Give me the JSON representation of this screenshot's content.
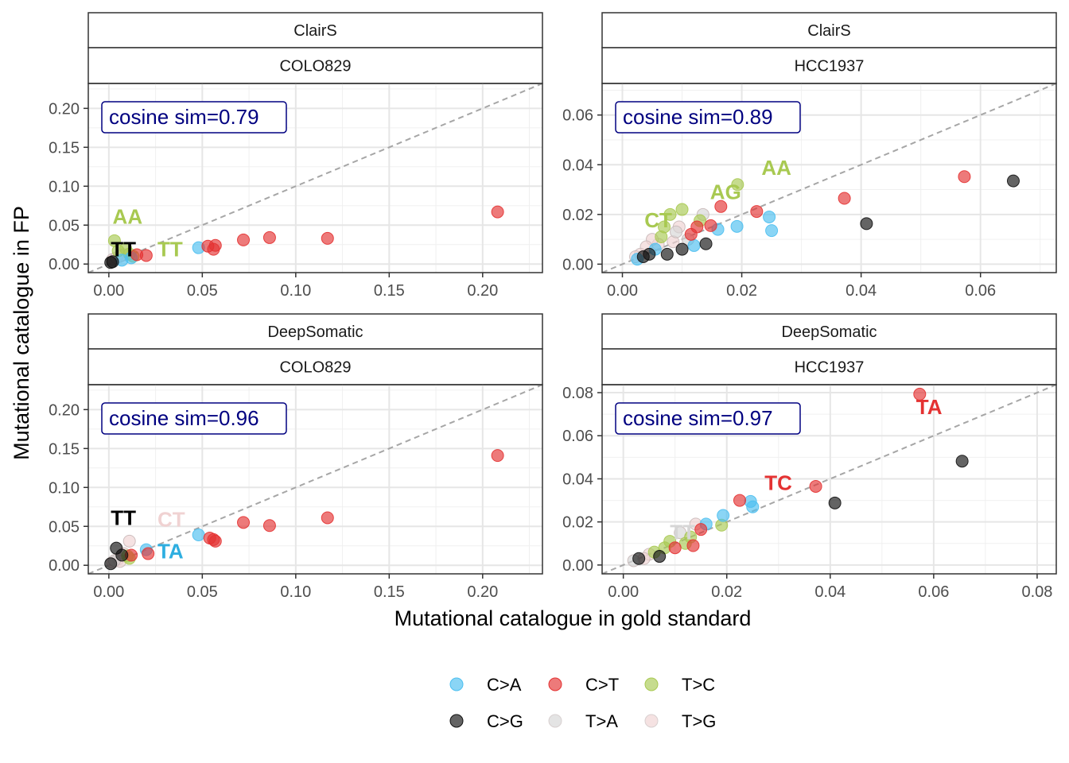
{
  "figure": {
    "xlabel": "Mutational catalogue in gold standard",
    "ylabel": "Mutational catalogue in FP"
  },
  "legend": {
    "placement": "bottom",
    "items": [
      {
        "label": "C>A",
        "color": "#4cbff0"
      },
      {
        "label": "C>T",
        "color": "#e43232"
      },
      {
        "label": "T>C",
        "color": "#a8c951"
      },
      {
        "label": "C>G",
        "color": "#111111"
      },
      {
        "label": "T>A",
        "color": "#d6d6d6"
      },
      {
        "label": "T>G",
        "color": "#f0d2d2"
      }
    ]
  },
  "chart_data": [
    {
      "type": "scatter",
      "strip_top": "ClairS",
      "strip_bottom": "COLO829",
      "annotation": "cosine sim=0.79",
      "xlim": [
        -0.011,
        0.232
      ],
      "ylim": [
        -0.011,
        0.232
      ],
      "xticks": [
        0,
        0.05,
        0.1,
        0.15,
        0.2
      ],
      "yticks": [
        0,
        0.05,
        0.1,
        0.15,
        0.2
      ],
      "tick_labels": [
        "0.00",
        "0.05",
        "0.10",
        "0.15",
        "0.20"
      ],
      "diagonal": true,
      "points": [
        {
          "x": 0.208,
          "y": 0.067,
          "cls": "C>T"
        },
        {
          "x": 0.117,
          "y": 0.033,
          "cls": "C>T"
        },
        {
          "x": 0.086,
          "y": 0.034,
          "cls": "C>T"
        },
        {
          "x": 0.072,
          "y": 0.031,
          "cls": "C>T"
        },
        {
          "x": 0.057,
          "y": 0.024,
          "cls": "C>T"
        },
        {
          "x": 0.053,
          "y": 0.023,
          "cls": "C>T"
        },
        {
          "x": 0.056,
          "y": 0.019,
          "cls": "C>T"
        },
        {
          "x": 0.048,
          "y": 0.021,
          "cls": "C>A"
        },
        {
          "x": 0.02,
          "y": 0.011,
          "cls": "C>T"
        },
        {
          "x": 0.015,
          "y": 0.012,
          "cls": "C>T"
        },
        {
          "x": 0.007,
          "y": 0.005,
          "cls": "C>A"
        },
        {
          "x": 0.012,
          "y": 0.008,
          "cls": "C>A"
        },
        {
          "x": 0.003,
          "y": 0.03,
          "cls": "T>C"
        },
        {
          "x": 0.009,
          "y": 0.02,
          "cls": "T>C"
        },
        {
          "x": 0.011,
          "y": 0.013,
          "cls": "T>C"
        },
        {
          "x": 0.013,
          "y": 0.01,
          "cls": "T>C"
        },
        {
          "x": 0.005,
          "y": 0.017,
          "cls": "T>C"
        },
        {
          "x": 0.006,
          "y": 0.01,
          "cls": "T>A"
        },
        {
          "x": 0.002,
          "y": 0.006,
          "cls": "T>G"
        },
        {
          "x": 0.008,
          "y": 0.012,
          "cls": "T>G"
        },
        {
          "x": 0.004,
          "y": 0.008,
          "cls": "T>G"
        },
        {
          "x": 0.001,
          "y": 0.002,
          "cls": "C>G"
        },
        {
          "x": 0.002,
          "y": 0.003,
          "cls": "C>G"
        }
      ],
      "labels": [
        {
          "text": "AA",
          "x": 0.002,
          "y": 0.052,
          "color": "#a8c951"
        },
        {
          "text": "TT",
          "x": 0.001,
          "y": 0.01,
          "color": "#000000"
        },
        {
          "text": "TT",
          "x": 0.026,
          "y": 0.01,
          "color": "#a8c951"
        }
      ]
    },
    {
      "type": "scatter",
      "strip_top": "ClairS",
      "strip_bottom": "HCC1937",
      "annotation": "cosine sim=0.89",
      "xlim": [
        -0.0034,
        0.0727
      ],
      "ylim": [
        -0.0034,
        0.0727
      ],
      "xticks": [
        0,
        0.02,
        0.04,
        0.06
      ],
      "yticks": [
        0,
        0.02,
        0.04,
        0.06
      ],
      "tick_labels": [
        "0.00",
        "0.02",
        "0.04",
        "0.06"
      ],
      "diagonal": true,
      "points": [
        {
          "x": 0.0655,
          "y": 0.0335,
          "cls": "C>G"
        },
        {
          "x": 0.0573,
          "y": 0.0352,
          "cls": "C>T"
        },
        {
          "x": 0.0409,
          "y": 0.0163,
          "cls": "C>G"
        },
        {
          "x": 0.0372,
          "y": 0.0265,
          "cls": "C>T"
        },
        {
          "x": 0.0246,
          "y": 0.019,
          "cls": "C>A"
        },
        {
          "x": 0.025,
          "y": 0.0135,
          "cls": "C>A"
        },
        {
          "x": 0.0225,
          "y": 0.0212,
          "cls": "C>T"
        },
        {
          "x": 0.0193,
          "y": 0.032,
          "cls": "T>C"
        },
        {
          "x": 0.0192,
          "y": 0.0152,
          "cls": "C>A"
        },
        {
          "x": 0.0165,
          "y": 0.0232,
          "cls": "C>T"
        },
        {
          "x": 0.016,
          "y": 0.014,
          "cls": "C>A"
        },
        {
          "x": 0.0148,
          "y": 0.0155,
          "cls": "C>T"
        },
        {
          "x": 0.014,
          "y": 0.0082,
          "cls": "C>G"
        },
        {
          "x": 0.0135,
          "y": 0.02,
          "cls": "T>A"
        },
        {
          "x": 0.013,
          "y": 0.0175,
          "cls": "T>C"
        },
        {
          "x": 0.0125,
          "y": 0.015,
          "cls": "C>T"
        },
        {
          "x": 0.012,
          "y": 0.0075,
          "cls": "C>A"
        },
        {
          "x": 0.0115,
          "y": 0.012,
          "cls": "C>T"
        },
        {
          "x": 0.011,
          "y": 0.01,
          "cls": "T>A"
        },
        {
          "x": 0.01,
          "y": 0.022,
          "cls": "T>C"
        },
        {
          "x": 0.01,
          "y": 0.006,
          "cls": "C>G"
        },
        {
          "x": 0.0095,
          "y": 0.015,
          "cls": "T>G"
        },
        {
          "x": 0.009,
          "y": 0.013,
          "cls": "T>A"
        },
        {
          "x": 0.0085,
          "y": 0.009,
          "cls": "T>G"
        },
        {
          "x": 0.008,
          "y": 0.02,
          "cls": "T>C"
        },
        {
          "x": 0.0075,
          "y": 0.004,
          "cls": "C>G"
        },
        {
          "x": 0.007,
          "y": 0.015,
          "cls": "T>C"
        },
        {
          "x": 0.0065,
          "y": 0.011,
          "cls": "T>C"
        },
        {
          "x": 0.006,
          "y": 0.008,
          "cls": "T>G"
        },
        {
          "x": 0.0055,
          "y": 0.006,
          "cls": "C>A"
        },
        {
          "x": 0.005,
          "y": 0.01,
          "cls": "T>G"
        },
        {
          "x": 0.0045,
          "y": 0.004,
          "cls": "C>G"
        },
        {
          "x": 0.004,
          "y": 0.007,
          "cls": "T>G"
        },
        {
          "x": 0.0035,
          "y": 0.003,
          "cls": "C>G"
        },
        {
          "x": 0.003,
          "y": 0.004,
          "cls": "T>G"
        },
        {
          "x": 0.0025,
          "y": 0.002,
          "cls": "C>A"
        },
        {
          "x": 0.0022,
          "y": 0.003,
          "cls": "T>G"
        }
      ],
      "labels": [
        {
          "text": "AA",
          "x": 0.0233,
          "y": 0.036,
          "color": "#a8c951"
        },
        {
          "text": "AG",
          "x": 0.0147,
          "y": 0.0262,
          "color": "#a8c951"
        },
        {
          "text": "CT",
          "x": 0.0037,
          "y": 0.0148,
          "color": "#a8c951"
        }
      ]
    },
    {
      "type": "scatter",
      "strip_top": "DeepSomatic",
      "strip_bottom": "COLO829",
      "annotation": "cosine sim=0.96",
      "xlim": [
        -0.011,
        0.232
      ],
      "ylim": [
        -0.011,
        0.232
      ],
      "xticks": [
        0,
        0.05,
        0.1,
        0.15,
        0.2
      ],
      "yticks": [
        0,
        0.05,
        0.1,
        0.15,
        0.2
      ],
      "tick_labels": [
        "0.00",
        "0.05",
        "0.10",
        "0.15",
        "0.20"
      ],
      "diagonal": true,
      "points": [
        {
          "x": 0.208,
          "y": 0.141,
          "cls": "C>T"
        },
        {
          "x": 0.117,
          "y": 0.061,
          "cls": "C>T"
        },
        {
          "x": 0.086,
          "y": 0.051,
          "cls": "C>T"
        },
        {
          "x": 0.072,
          "y": 0.055,
          "cls": "C>T"
        },
        {
          "x": 0.054,
          "y": 0.035,
          "cls": "C>T"
        },
        {
          "x": 0.057,
          "y": 0.031,
          "cls": "C>T"
        },
        {
          "x": 0.056,
          "y": 0.033,
          "cls": "C>T"
        },
        {
          "x": 0.048,
          "y": 0.039,
          "cls": "C>A"
        },
        {
          "x": 0.02,
          "y": 0.02,
          "cls": "C>A"
        },
        {
          "x": 0.021,
          "y": 0.015,
          "cls": "C>T"
        },
        {
          "x": 0.012,
          "y": 0.013,
          "cls": "C>T"
        },
        {
          "x": 0.011,
          "y": 0.031,
          "cls": "T>G"
        },
        {
          "x": 0.008,
          "y": 0.015,
          "cls": "T>G"
        },
        {
          "x": 0.004,
          "y": 0.022,
          "cls": "C>G"
        },
        {
          "x": 0.007,
          "y": 0.013,
          "cls": "C>G"
        },
        {
          "x": 0.01,
          "y": 0.012,
          "cls": "T>C"
        },
        {
          "x": 0.011,
          "y": 0.009,
          "cls": "T>C"
        },
        {
          "x": 0.005,
          "y": 0.008,
          "cls": "T>G"
        },
        {
          "x": 0.003,
          "y": 0.006,
          "cls": "T>A"
        },
        {
          "x": 0.002,
          "y": 0.004,
          "cls": "T>G"
        },
        {
          "x": 0.001,
          "y": 0.002,
          "cls": "C>G"
        },
        {
          "x": 0.006,
          "y": 0.005,
          "cls": "T>G"
        }
      ],
      "labels": [
        {
          "text": "TT",
          "x": 0.001,
          "y": 0.052,
          "color": "#000000"
        },
        {
          "text": "CT",
          "x": 0.026,
          "y": 0.05,
          "color": "#f0d2d2"
        },
        {
          "text": "TA",
          "x": 0.026,
          "y": 0.009,
          "color": "#2eaee0"
        }
      ]
    },
    {
      "type": "scatter",
      "strip_top": "DeepSomatic",
      "strip_bottom": "HCC1937",
      "annotation": "cosine sim=0.97",
      "xlim": [
        -0.0041,
        0.0837
      ],
      "ylim": [
        -0.0041,
        0.0837
      ],
      "xticks": [
        0,
        0.02,
        0.04,
        0.06,
        0.08
      ],
      "yticks": [
        0,
        0.02,
        0.04,
        0.06,
        0.08
      ],
      "tick_labels": [
        "0.00",
        "0.02",
        "0.04",
        "0.06",
        "0.08"
      ],
      "diagonal": true,
      "points": [
        {
          "x": 0.0573,
          "y": 0.0793,
          "cls": "C>T"
        },
        {
          "x": 0.0655,
          "y": 0.0482,
          "cls": "C>G"
        },
        {
          "x": 0.0409,
          "y": 0.0288,
          "cls": "C>G"
        },
        {
          "x": 0.0372,
          "y": 0.0365,
          "cls": "C>T"
        },
        {
          "x": 0.0246,
          "y": 0.0295,
          "cls": "C>A"
        },
        {
          "x": 0.025,
          "y": 0.027,
          "cls": "C>A"
        },
        {
          "x": 0.0225,
          "y": 0.03,
          "cls": "C>T"
        },
        {
          "x": 0.0193,
          "y": 0.023,
          "cls": "C>A"
        },
        {
          "x": 0.019,
          "y": 0.0185,
          "cls": "T>C"
        },
        {
          "x": 0.016,
          "y": 0.019,
          "cls": "C>A"
        },
        {
          "x": 0.015,
          "y": 0.0165,
          "cls": "C>T"
        },
        {
          "x": 0.014,
          "y": 0.019,
          "cls": "T>G"
        },
        {
          "x": 0.0135,
          "y": 0.009,
          "cls": "C>T"
        },
        {
          "x": 0.013,
          "y": 0.013,
          "cls": "T>C"
        },
        {
          "x": 0.012,
          "y": 0.01,
          "cls": "T>C"
        },
        {
          "x": 0.011,
          "y": 0.015,
          "cls": "T>A"
        },
        {
          "x": 0.01,
          "y": 0.008,
          "cls": "C>T"
        },
        {
          "x": 0.009,
          "y": 0.011,
          "cls": "T>C"
        },
        {
          "x": 0.008,
          "y": 0.008,
          "cls": "T>C"
        },
        {
          "x": 0.007,
          "y": 0.004,
          "cls": "C>G"
        },
        {
          "x": 0.006,
          "y": 0.006,
          "cls": "T>C"
        },
        {
          "x": 0.005,
          "y": 0.005,
          "cls": "T>G"
        },
        {
          "x": 0.004,
          "y": 0.003,
          "cls": "T>G"
        },
        {
          "x": 0.003,
          "y": 0.003,
          "cls": "C>G"
        },
        {
          "x": 0.002,
          "y": 0.002,
          "cls": "T>A"
        }
      ],
      "labels": [
        {
          "text": "TA",
          "x": 0.0566,
          "y": 0.07,
          "color": "#e43232"
        },
        {
          "text": "TC",
          "x": 0.0273,
          "y": 0.0348,
          "color": "#e43232"
        },
        {
          "text": "TT",
          "x": 0.009,
          "y": 0.012,
          "color": "#d6d6d6"
        }
      ]
    }
  ]
}
